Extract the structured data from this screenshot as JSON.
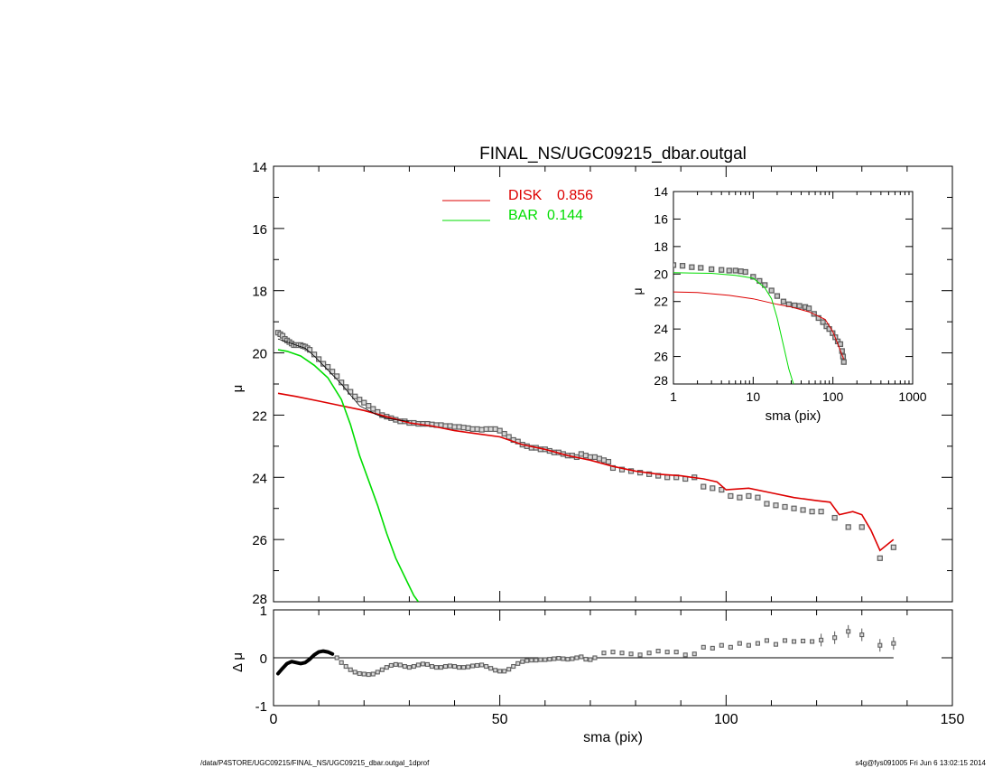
{
  "chart_data": [
    {
      "type": "scatter",
      "title": "FINAL_NS/UGC09215_dbar.outgal",
      "xlabel": "",
      "ylabel": "μ",
      "xlim": [
        0,
        150
      ],
      "ylim": [
        28,
        14
      ],
      "yticks": [
        "14",
        "16",
        "18",
        "20",
        "22",
        "24",
        "26",
        "28"
      ],
      "legend_position": "top-center",
      "series": [
        {
          "name": "DISK",
          "value_label": "0.856",
          "color": "#dd0000",
          "style": "line",
          "x": [
            1,
            5,
            10,
            15,
            20,
            25,
            30,
            35,
            40,
            45,
            50,
            55,
            60,
            65,
            70,
            75,
            80,
            85,
            90,
            95,
            98,
            100,
            105,
            110,
            115,
            120,
            123,
            125,
            128,
            130,
            132,
            134,
            137
          ],
          "y": [
            21.3,
            21.4,
            21.55,
            21.7,
            21.85,
            22.05,
            22.25,
            22.35,
            22.5,
            22.6,
            22.7,
            22.95,
            23.1,
            23.3,
            23.45,
            23.65,
            23.8,
            23.9,
            23.95,
            24.05,
            24.15,
            24.4,
            24.35,
            24.5,
            24.65,
            24.75,
            24.8,
            25.2,
            25.1,
            25.2,
            25.7,
            26.35,
            26.0
          ]
        },
        {
          "name": "BAR",
          "value_label": "0.144",
          "color": "#00dd00",
          "style": "line",
          "x": [
            1,
            3,
            6,
            9,
            12,
            15,
            17,
            19,
            21,
            23,
            25,
            27,
            29,
            31,
            32
          ],
          "y": [
            19.9,
            19.95,
            20.1,
            20.4,
            20.8,
            21.5,
            22.3,
            23.3,
            24.1,
            24.9,
            25.8,
            26.6,
            27.2,
            27.8,
            28.0
          ]
        },
        {
          "name": "",
          "color": "#000000",
          "style": "thin-line",
          "x": [
            1,
            3,
            5,
            7,
            9,
            11,
            13,
            15,
            17,
            19,
            21,
            23,
            25,
            27,
            30
          ],
          "y": [
            19.55,
            19.65,
            19.75,
            19.85,
            20.1,
            20.4,
            20.7,
            21.0,
            21.35,
            21.7,
            21.85,
            22.0,
            22.1,
            22.15,
            22.2
          ]
        },
        {
          "name": "",
          "color": "#606060",
          "style": "points",
          "x": [
            1,
            1.5,
            2,
            2.5,
            3,
            3.5,
            4,
            4.5,
            5,
            5.5,
            6,
            6.5,
            7,
            7.5,
            8,
            9,
            10,
            11,
            12,
            13,
            14,
            15,
            16,
            17,
            18,
            19,
            20,
            21,
            22,
            23,
            24,
            25,
            26,
            27,
            28,
            29,
            30,
            31,
            32,
            33,
            34,
            35,
            36,
            37,
            38,
            39,
            40,
            41,
            42,
            43,
            44,
            45,
            46,
            47,
            48,
            49,
            50,
            51,
            52,
            53,
            54,
            55,
            56,
            57,
            58,
            59,
            60,
            61,
            62,
            63,
            64,
            65,
            66,
            67,
            68,
            69,
            70,
            71,
            72,
            73,
            74,
            75,
            77,
            79,
            81,
            83,
            85,
            87,
            89,
            91,
            93,
            95,
            97,
            99,
            101,
            103,
            105,
            107,
            109,
            111,
            113,
            115,
            117,
            119,
            121,
            124,
            127,
            130,
            134,
            137
          ],
          "y": [
            19.35,
            19.4,
            19.45,
            19.55,
            19.6,
            19.65,
            19.7,
            19.75,
            19.75,
            19.75,
            19.75,
            19.78,
            19.8,
            19.85,
            19.9,
            20.05,
            20.2,
            20.35,
            20.45,
            20.6,
            20.75,
            20.95,
            21.1,
            21.25,
            21.4,
            21.5,
            21.6,
            21.7,
            21.8,
            21.9,
            22.0,
            22.05,
            22.1,
            22.15,
            22.2,
            22.2,
            22.25,
            22.25,
            22.28,
            22.28,
            22.28,
            22.3,
            22.32,
            22.32,
            22.35,
            22.35,
            22.38,
            22.38,
            22.4,
            22.42,
            22.45,
            22.45,
            22.47,
            22.45,
            22.45,
            22.45,
            22.5,
            22.6,
            22.7,
            22.8,
            22.85,
            22.95,
            23.0,
            23.05,
            23.05,
            23.1,
            23.1,
            23.15,
            23.2,
            23.2,
            23.25,
            23.3,
            23.3,
            23.35,
            23.25,
            23.3,
            23.35,
            23.35,
            23.4,
            23.45,
            23.5,
            23.7,
            23.75,
            23.8,
            23.85,
            23.9,
            23.95,
            24.0,
            24.0,
            24.05,
            24.0,
            24.3,
            24.35,
            24.4,
            24.6,
            24.65,
            24.6,
            24.65,
            24.85,
            24.9,
            24.95,
            25.0,
            25.05,
            25.1,
            25.1,
            25.3,
            25.6,
            25.6,
            26.6,
            26.25
          ]
        }
      ]
    },
    {
      "type": "scatter",
      "title": "",
      "xlabel": "",
      "ylabel": "μ",
      "xscale": "log",
      "xlim": [
        1,
        1000
      ],
      "ylim": [
        28,
        14
      ],
      "xticks": [
        "1",
        "10",
        "100",
        "1000"
      ],
      "yticks": [
        "14",
        "16",
        "18",
        "20",
        "22",
        "24",
        "26",
        "28"
      ],
      "inset_xlabel": "sma (pix)",
      "series": [
        {
          "name": "DISK",
          "color": "#dd0000",
          "style": "line",
          "x": [
            1,
            2,
            5,
            10,
            20,
            30,
            50,
            80,
            100,
            137
          ],
          "y": [
            21.3,
            21.35,
            21.55,
            21.8,
            22.2,
            22.4,
            22.75,
            23.3,
            24.2,
            26.2
          ]
        },
        {
          "name": "BAR",
          "color": "#00dd00",
          "style": "line",
          "x": [
            1,
            3,
            6,
            10,
            14,
            17,
            20,
            24,
            28,
            32
          ],
          "y": [
            19.9,
            19.95,
            20.1,
            20.3,
            21.0,
            21.8,
            23.2,
            25.2,
            26.9,
            28.0
          ]
        },
        {
          "name": "",
          "color": "#606060",
          "style": "points",
          "x": [
            1,
            1.3,
            1.7,
            2.2,
            3,
            4,
            5,
            6,
            7,
            8,
            10,
            12,
            14,
            17,
            20,
            24,
            28,
            33,
            38,
            45,
            50,
            58,
            66,
            75,
            83,
            90,
            99,
            107,
            115,
            124,
            130,
            134,
            137
          ],
          "y": [
            19.35,
            19.4,
            19.5,
            19.55,
            19.65,
            19.7,
            19.75,
            19.75,
            19.8,
            19.85,
            20.2,
            20.5,
            20.8,
            21.2,
            21.6,
            22.0,
            22.2,
            22.28,
            22.32,
            22.4,
            22.5,
            22.9,
            23.2,
            23.5,
            23.8,
            24.0,
            24.3,
            24.6,
            24.9,
            25.1,
            25.6,
            26.0,
            26.4
          ]
        }
      ]
    },
    {
      "type": "scatter",
      "title": "",
      "xlabel": "sma (pix)",
      "ylabel": "Δ μ",
      "xlim": [
        0,
        150
      ],
      "ylim": [
        -1,
        1
      ],
      "xticks": [
        "0",
        "50",
        "100",
        "150"
      ],
      "yticks": [
        "1",
        "0",
        "-1"
      ],
      "reference_line": 0,
      "series": [
        {
          "name": "",
          "color": "#000000",
          "style": "thick-line",
          "x": [
            1,
            2,
            3,
            4,
            5,
            6,
            7,
            8,
            9,
            10,
            11,
            12,
            13
          ],
          "y": [
            -0.33,
            -0.22,
            -0.12,
            -0.08,
            -0.1,
            -0.12,
            -0.1,
            -0.03,
            0.06,
            0.12,
            0.14,
            0.12,
            0.08
          ]
        },
        {
          "name": "",
          "color": "#606060",
          "style": "points",
          "x": [
            14,
            15,
            16,
            17,
            18,
            19,
            20,
            21,
            22,
            23,
            24,
            25,
            26,
            27,
            28,
            29,
            30,
            31,
            32,
            33,
            34,
            35,
            36,
            37,
            38,
            39,
            40,
            41,
            42,
            43,
            44,
            45,
            46,
            47,
            48,
            49,
            50,
            51,
            52,
            53,
            54,
            55,
            56,
            57,
            58,
            59,
            60,
            61,
            62,
            63,
            64,
            65,
            66,
            67,
            68,
            69,
            70,
            71,
            73,
            75,
            77,
            79,
            81,
            83,
            85,
            87,
            89,
            91,
            93,
            95,
            97,
            99,
            101,
            103,
            105,
            107,
            109,
            111,
            113,
            115,
            117,
            119,
            121,
            124,
            127,
            130,
            134,
            137
          ],
          "y": [
            0.0,
            -0.1,
            -0.18,
            -0.25,
            -0.3,
            -0.33,
            -0.34,
            -0.35,
            -0.34,
            -0.3,
            -0.25,
            -0.2,
            -0.16,
            -0.14,
            -0.15,
            -0.18,
            -0.2,
            -0.18,
            -0.15,
            -0.13,
            -0.14,
            -0.18,
            -0.2,
            -0.2,
            -0.18,
            -0.17,
            -0.18,
            -0.2,
            -0.2,
            -0.19,
            -0.17,
            -0.16,
            -0.15,
            -0.18,
            -0.22,
            -0.26,
            -0.28,
            -0.28,
            -0.24,
            -0.18,
            -0.12,
            -0.08,
            -0.06,
            -0.05,
            -0.05,
            -0.04,
            -0.04,
            -0.03,
            -0.02,
            -0.01,
            -0.02,
            -0.03,
            -0.02,
            0.0,
            0.02,
            -0.03,
            -0.04,
            0.0,
            0.1,
            0.12,
            0.1,
            0.08,
            0.06,
            0.1,
            0.14,
            0.12,
            0.12,
            0.06,
            0.08,
            0.22,
            0.2,
            0.26,
            0.22,
            0.3,
            0.26,
            0.3,
            0.36,
            0.28,
            0.36,
            0.34,
            0.35,
            0.34,
            0.37,
            0.42,
            0.55,
            0.48,
            0.26,
            0.3
          ]
        }
      ]
    }
  ],
  "footer": {
    "left": "/data/P4STORE/UGC09215/FINAL_NS/UGC09215_dbar.outgal_1dprof",
    "right": "s4g@fys091005  Fri Jun  6 13:02:15 2014"
  }
}
